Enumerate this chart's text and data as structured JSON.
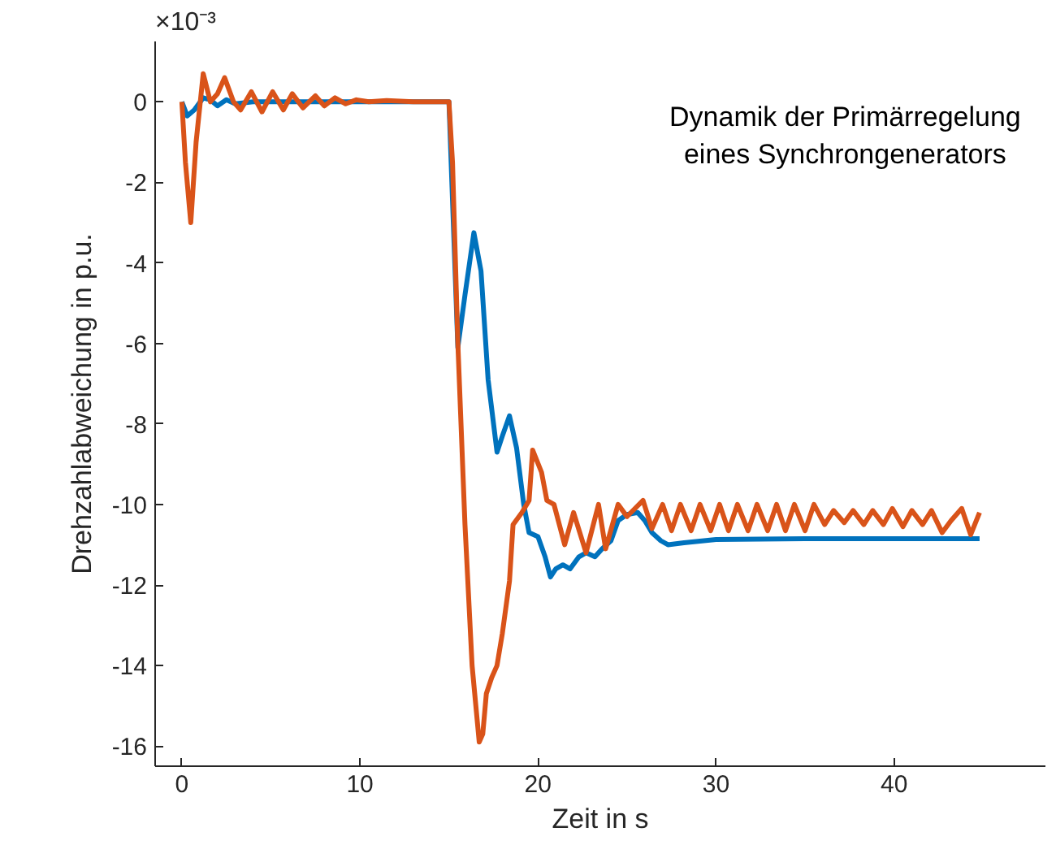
{
  "chart_data": {
    "type": "line",
    "xlabel": "Zeit in s",
    "ylabel": "Drehzahlabweichung in p.u.",
    "annotations": [
      "×10⁻³",
      "Dynamik der Primärregelung\neines Synchrongenerators"
    ],
    "xlim": [
      -1.5,
      48.5
    ],
    "xticks": [
      0,
      10,
      20,
      30,
      40
    ],
    "ylim": [
      -16.5,
      1.5
    ],
    "yticks": [
      -16,
      -14,
      -12,
      -10,
      -8,
      -6,
      -4,
      -2,
      0
    ],
    "grid": false,
    "line_style": "solid",
    "marker": "none",
    "series": [
      {
        "color": "#0072bd",
        "x": [
          0,
          0.3,
          0.7,
          1.2,
          1.6,
          2.0,
          2.5,
          3.0,
          4.0,
          6.0,
          10.0,
          15.0,
          15.5,
          15.9,
          16.4,
          16.8,
          17.2,
          17.7,
          18.0,
          18.4,
          18.8,
          19.2,
          19.5,
          20.0,
          20.4,
          20.7,
          21.0,
          21.4,
          21.8,
          22.3,
          22.7,
          23.2,
          23.6,
          24.1,
          24.5,
          25.0,
          25.6,
          26.0,
          26.4,
          26.9,
          27.3,
          28.2,
          30.0,
          35.0,
          40.0,
          44.8
        ],
        "values": [
          0,
          -0.35,
          -0.2,
          0.1,
          0.05,
          -0.1,
          0.05,
          -0.05,
          0,
          0,
          0,
          0,
          -6.1,
          -4.8,
          -3.25,
          -4.2,
          -6.9,
          -8.7,
          -8.3,
          -7.8,
          -8.6,
          -10.0,
          -10.7,
          -10.8,
          -11.3,
          -11.8,
          -11.6,
          -11.5,
          -11.6,
          -11.3,
          -11.2,
          -11.3,
          -11.1,
          -10.9,
          -10.4,
          -10.25,
          -10.2,
          -10.4,
          -10.7,
          -10.9,
          -11.0,
          -10.95,
          -10.87,
          -10.85,
          -10.85,
          -10.85
        ]
      },
      {
        "color": "#d95319",
        "x": [
          0,
          0.2,
          0.5,
          0.8,
          1.2,
          1.6,
          2.0,
          2.4,
          2.9,
          3.3,
          3.9,
          4.5,
          5.1,
          5.7,
          6.2,
          6.8,
          7.5,
          8.0,
          8.6,
          9.2,
          9.8,
          10.5,
          11.5,
          13,
          15.0,
          15.2,
          15.5,
          15.9,
          16.3,
          16.7,
          16.9,
          17.1,
          17.4,
          17.7,
          18.0,
          18.4,
          18.6,
          19.1,
          19.5,
          19.7,
          20.2,
          20.5,
          20.9,
          21.5,
          22.0,
          22.7,
          23.4,
          23.8,
          24.5,
          25.0,
          25.9,
          26.4,
          27.0,
          27.5,
          28.0,
          28.6,
          29.1,
          29.7,
          30.2,
          30.7,
          31.2,
          31.8,
          32.3,
          32.9,
          33.4,
          33.9,
          34.4,
          35.0,
          35.5,
          36.1,
          36.6,
          37.2,
          37.7,
          38.3,
          38.8,
          39.4,
          39.9,
          40.5,
          41.0,
          41.6,
          42.1,
          42.7,
          43.2,
          43.8,
          44.3,
          44.8
        ],
        "values": [
          0,
          -1.5,
          -3.0,
          -1.0,
          0.7,
          0.0,
          0.2,
          0.6,
          0.0,
          -0.2,
          0.25,
          -0.25,
          0.25,
          -0.2,
          0.2,
          -0.15,
          0.15,
          -0.1,
          0.1,
          -0.05,
          0.05,
          0,
          0.03,
          0,
          0,
          -1.5,
          -6.0,
          -10.5,
          -14.0,
          -15.9,
          -15.7,
          -14.7,
          -14.3,
          -14.0,
          -13.2,
          -11.9,
          -10.5,
          -10.2,
          -9.9,
          -8.65,
          -9.2,
          -9.9,
          -10.0,
          -11.0,
          -10.2,
          -11.2,
          -10.0,
          -11.1,
          -10.0,
          -10.3,
          -9.9,
          -10.6,
          -10.0,
          -10.65,
          -10.0,
          -10.65,
          -10.0,
          -10.65,
          -10.0,
          -10.65,
          -10.0,
          -10.65,
          -10.0,
          -10.65,
          -10.0,
          -10.65,
          -10.0,
          -10.65,
          -10.0,
          -10.5,
          -10.15,
          -10.45,
          -10.15,
          -10.5,
          -10.15,
          -10.5,
          -10.1,
          -10.55,
          -10.15,
          -10.5,
          -10.15,
          -10.7,
          -10.4,
          -10.1,
          -10.75,
          -10.2
        ]
      }
    ]
  }
}
